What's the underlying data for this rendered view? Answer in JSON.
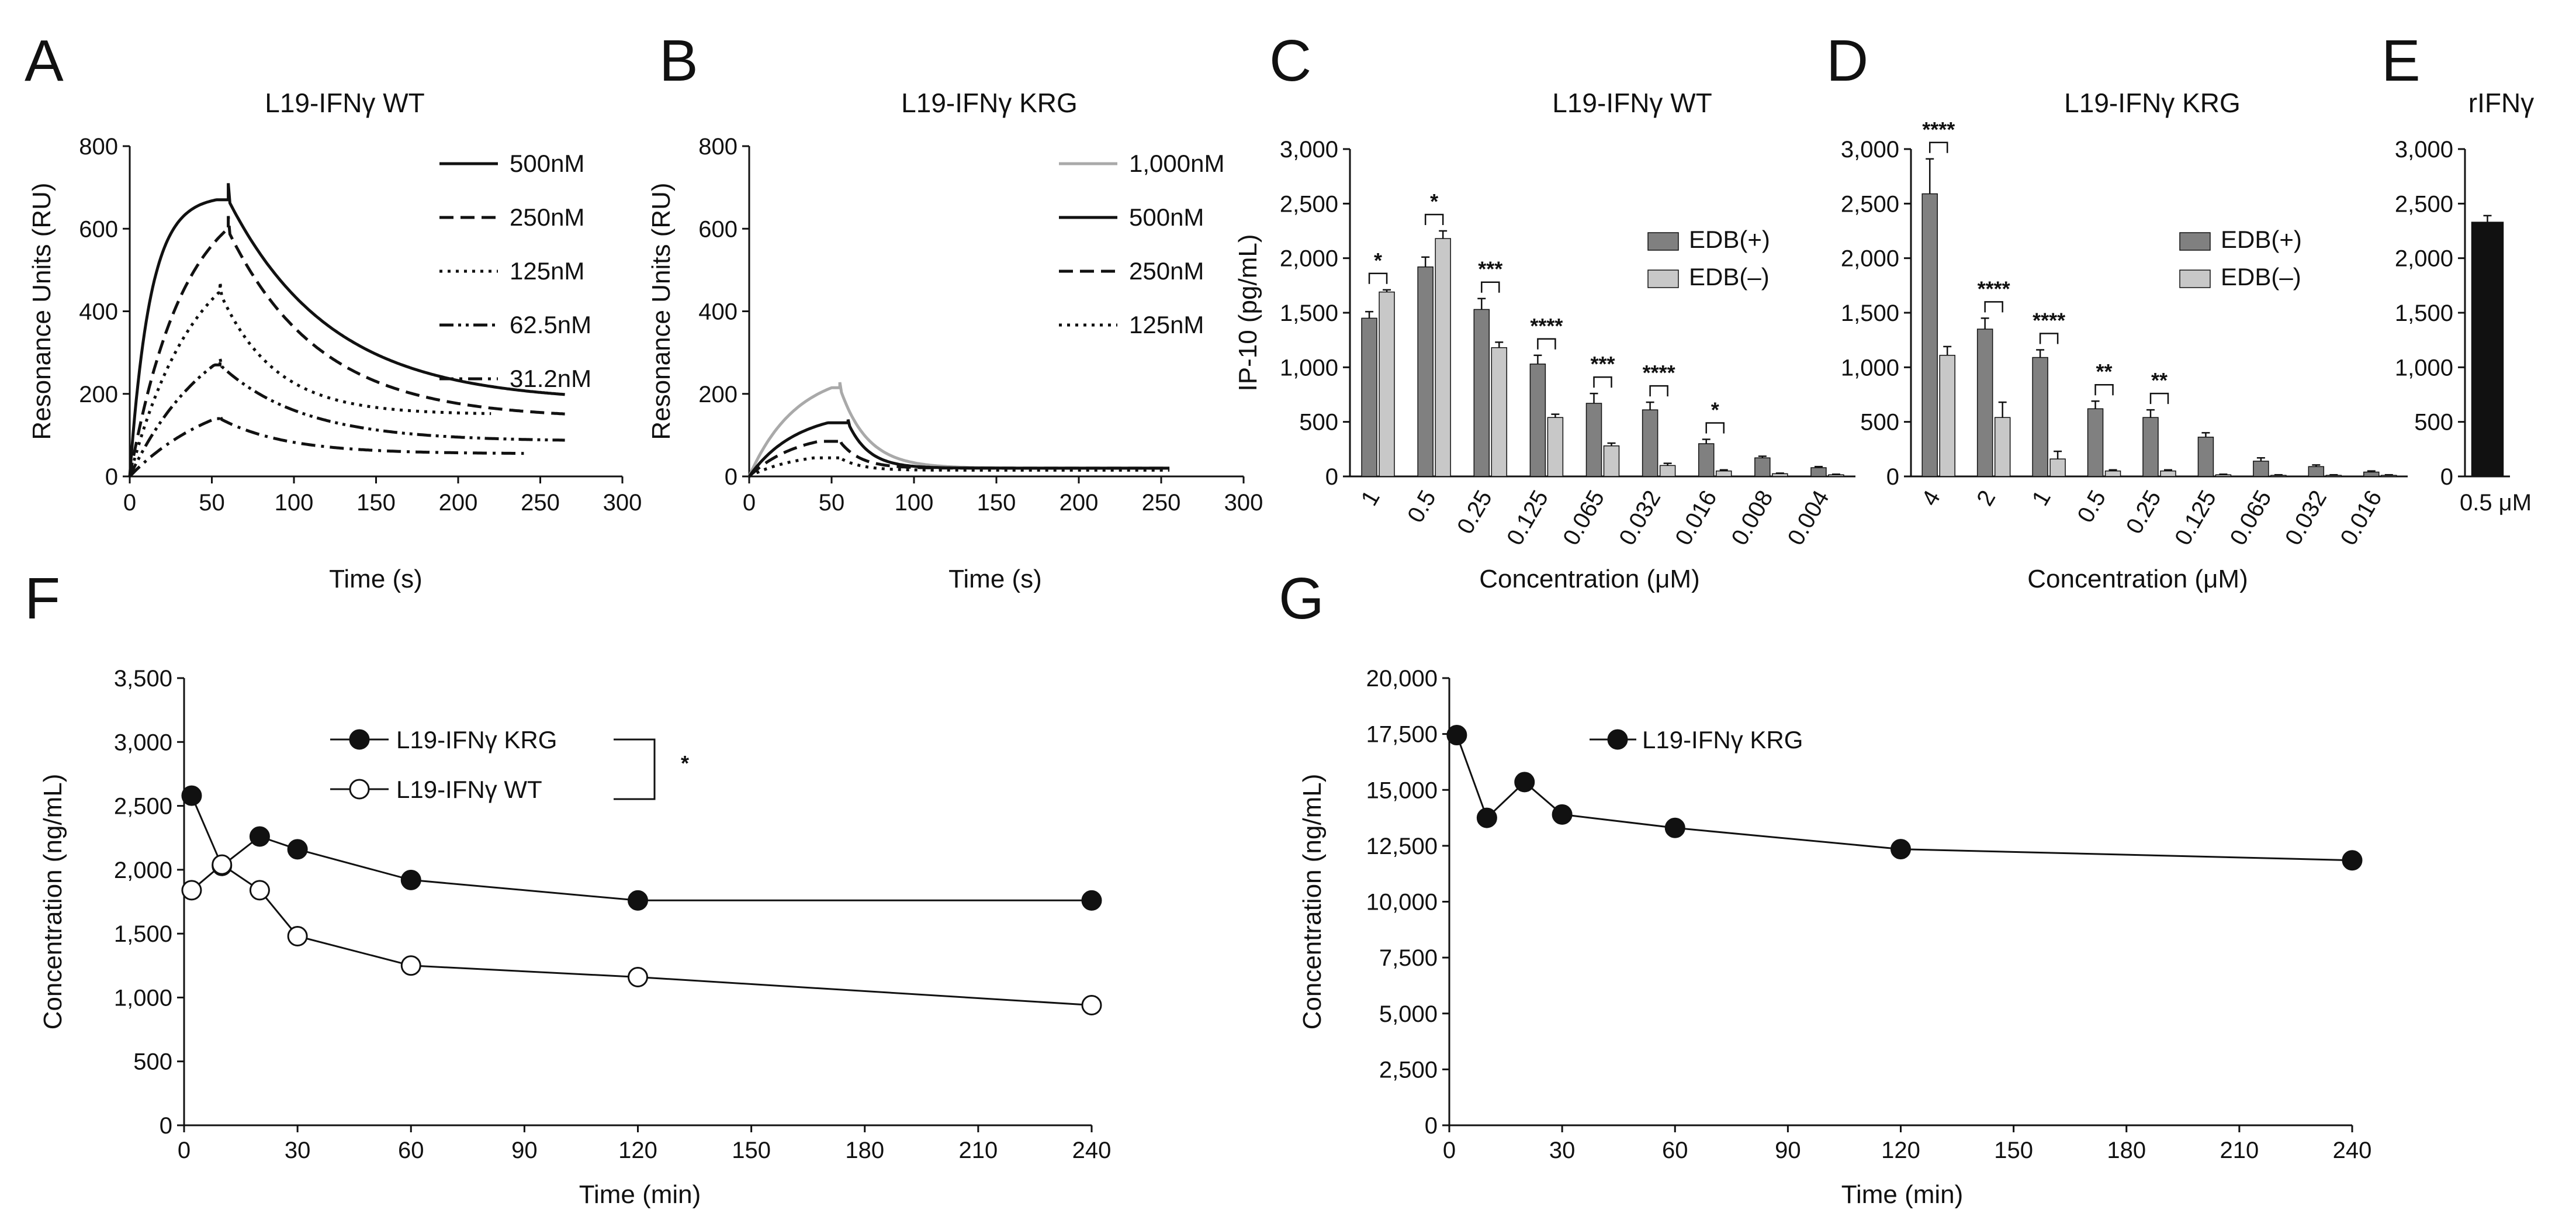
{
  "colors": {
    "black": "#111111",
    "gray_light": "#a9a9a9",
    "bar_dark": "#808080",
    "bar_light": "#c8c8c8"
  },
  "chart_data": [
    {
      "panel": "A",
      "type": "line",
      "title": "L19-IFNγ WT",
      "xlabel": "Time (s)",
      "ylabel": "Resonance Units (RU)",
      "xlim": [
        0,
        300
      ],
      "ylim": [
        0,
        800
      ],
      "xticks": [
        0,
        50,
        100,
        150,
        200,
        250,
        300
      ],
      "yticks": [
        0,
        200,
        400,
        600,
        800
      ],
      "legend_position": "top-right",
      "series": [
        {
          "name": "500nM",
          "style": "solid",
          "color": "#111111",
          "assoc_end": 60,
          "peak": 670,
          "plateau": 680,
          "k_on": 0.08,
          "final": 180,
          "k_off": 0.016,
          "t_end": 265
        },
        {
          "name": "250nM",
          "style": "dashed",
          "color": "#111111",
          "assoc_end": 60,
          "peak": 595,
          "plateau": 720,
          "k_on": 0.03,
          "final": 140,
          "k_off": 0.018,
          "t_end": 265
        },
        {
          "name": "125nM",
          "style": "dotted",
          "color": "#111111",
          "assoc_end": 55,
          "peak": 445,
          "plateau": 600,
          "k_on": 0.025,
          "final": 150,
          "k_off": 0.03,
          "t_end": 220
        },
        {
          "name": "62.5nM",
          "style": "dashdotdot",
          "color": "#111111",
          "assoc_end": 55,
          "peak": 270,
          "plateau": 420,
          "k_on": 0.02,
          "final": 85,
          "k_off": 0.02,
          "t_end": 265
        },
        {
          "name": "31.2nM",
          "style": "dashdot",
          "color": "#111111",
          "assoc_end": 55,
          "peak": 140,
          "plateau": 230,
          "k_on": 0.018,
          "final": 55,
          "k_off": 0.025,
          "t_end": 240
        }
      ]
    },
    {
      "panel": "B",
      "type": "line",
      "title": "L19-IFNγ KRG",
      "xlabel": "Time (s)",
      "ylabel": "Resonance Units (RU)",
      "xlim": [
        0,
        300
      ],
      "ylim": [
        0,
        800
      ],
      "xticks": [
        0,
        50,
        100,
        150,
        200,
        250,
        300
      ],
      "yticks": [
        0,
        200,
        400,
        600,
        800
      ],
      "legend_position": "top-right",
      "series": [
        {
          "name": "1,000nM",
          "style": "solid",
          "color": "#a9a9a9",
          "assoc_end": 55,
          "peak": 215,
          "plateau": 260,
          "k_on": 0.035,
          "final": 20,
          "k_off": 0.06,
          "t_end": 255
        },
        {
          "name": "500nM",
          "style": "solid",
          "color": "#111111",
          "assoc_end": 60,
          "peak": 130,
          "plateau": 160,
          "k_on": 0.035,
          "final": 20,
          "k_off": 0.08,
          "t_end": 255
        },
        {
          "name": "250nM",
          "style": "dashed",
          "color": "#111111",
          "assoc_end": 55,
          "peak": 85,
          "plateau": 110,
          "k_on": 0.035,
          "final": 20,
          "k_off": 0.08,
          "t_end": 255
        },
        {
          "name": "125nM",
          "style": "dotted",
          "color": "#111111",
          "assoc_end": 55,
          "peak": 45,
          "plateau": 60,
          "k_on": 0.035,
          "final": 15,
          "k_off": 0.08,
          "t_end": 255
        }
      ]
    },
    {
      "panel": "C",
      "type": "bar",
      "title": "L19-IFNγ WT",
      "xlabel": "Concentration (μM)",
      "ylabel": "IP-10 (pg/mL)",
      "ylim": [
        0,
        3000
      ],
      "yticks": [
        0,
        500,
        1000,
        1500,
        2000,
        2500,
        3000
      ],
      "categories": [
        "1",
        "0.5",
        "0.25",
        "0.125",
        "0.065",
        "0.032",
        "0.016",
        "0.008",
        "0.004"
      ],
      "series": [
        {
          "name": "EDB(+)",
          "color": "#808080",
          "values": [
            1450,
            1920,
            1530,
            1030,
            670,
            610,
            300,
            170,
            80
          ],
          "errors": [
            60,
            90,
            100,
            80,
            90,
            70,
            40,
            15,
            10
          ]
        },
        {
          "name": "EDB(–)",
          "color": "#c8c8c8",
          "values": [
            1690,
            2180,
            1180,
            540,
            280,
            100,
            50,
            25,
            15
          ],
          "errors": [
            20,
            70,
            50,
            30,
            25,
            20,
            10,
            5,
            5
          ]
        }
      ],
      "significance": [
        "*",
        "*",
        "***",
        "****",
        "***",
        "****",
        "*",
        "",
        ""
      ],
      "legend_position": "right"
    },
    {
      "panel": "D",
      "type": "bar",
      "title": "L19-IFNγ KRG",
      "xlabel": "Concentration (μM)",
      "ylabel": "",
      "ylim": [
        0,
        3000
      ],
      "yticks": [
        0,
        500,
        1000,
        1500,
        2000,
        2500,
        3000
      ],
      "categories": [
        "4",
        "2",
        "1",
        "0.5",
        "0.25",
        "0.125",
        "0.065",
        "0.032",
        "0.016"
      ],
      "series": [
        {
          "name": "EDB(+)",
          "color": "#808080",
          "values": [
            2590,
            1350,
            1090,
            620,
            540,
            360,
            140,
            90,
            40
          ],
          "errors": [
            320,
            100,
            70,
            70,
            70,
            40,
            30,
            15,
            10
          ]
        },
        {
          "name": "EDB(–)",
          "color": "#c8c8c8",
          "values": [
            1110,
            540,
            160,
            50,
            50,
            15,
            10,
            10,
            10
          ],
          "errors": [
            80,
            140,
            70,
            10,
            10,
            5,
            5,
            5,
            5
          ]
        }
      ],
      "significance": [
        "****",
        "****",
        "****",
        "**",
        "**",
        "",
        "",
        "",
        ""
      ],
      "legend_position": "right"
    },
    {
      "panel": "E",
      "type": "bar",
      "title": "rIFNγ",
      "xlabel": "",
      "ylabel": "",
      "ylim": [
        0,
        3000
      ],
      "yticks": [
        0,
        500,
        1000,
        1500,
        2000,
        2500,
        3000
      ],
      "categories": [
        "0.5 μM"
      ],
      "series": [
        {
          "name": "rIFNγ",
          "color": "#111111",
          "values": [
            2330
          ],
          "errors": [
            60
          ]
        }
      ]
    },
    {
      "panel": "F",
      "type": "line",
      "title": "",
      "xlabel": "Time (min)",
      "ylabel": "Concentration (ng/mL)",
      "xlim": [
        0,
        240
      ],
      "ylim": [
        0,
        3500
      ],
      "xticks": [
        0,
        30,
        60,
        90,
        120,
        150,
        180,
        210,
        240
      ],
      "yticks": [
        0,
        500,
        1000,
        1500,
        2000,
        2500,
        3000,
        3500
      ],
      "legend_position": "top-center",
      "significance": "*",
      "series": [
        {
          "name": "L19-IFNγ KRG",
          "marker": "filled",
          "x": [
            2,
            10,
            20,
            30,
            60,
            120,
            240
          ],
          "y": [
            2580,
            2030,
            2260,
            2160,
            1920,
            1760,
            1760
          ]
        },
        {
          "name": "L19-IFNγ WT",
          "marker": "open",
          "x": [
            2,
            10,
            20,
            30,
            60,
            120,
            240
          ],
          "y": [
            1840,
            2040,
            1840,
            1480,
            1250,
            1160,
            940
          ]
        }
      ]
    },
    {
      "panel": "G",
      "type": "line",
      "title": "",
      "xlabel": "Time (min)",
      "ylabel": "Concentration (ng/mL)",
      "xlim": [
        0,
        240
      ],
      "ylim": [
        0,
        20000
      ],
      "xticks": [
        0,
        30,
        60,
        90,
        120,
        150,
        180,
        210,
        240
      ],
      "yticks": [
        0,
        2500,
        5000,
        7500,
        10000,
        12500,
        15000,
        17500,
        20000
      ],
      "legend_position": "top-left",
      "series": [
        {
          "name": "L19-IFNγ KRG",
          "marker": "filled",
          "x": [
            2,
            10,
            20,
            30,
            60,
            120,
            240
          ],
          "y": [
            17450,
            13750,
            15350,
            13900,
            13300,
            12350,
            11850
          ]
        }
      ]
    }
  ]
}
